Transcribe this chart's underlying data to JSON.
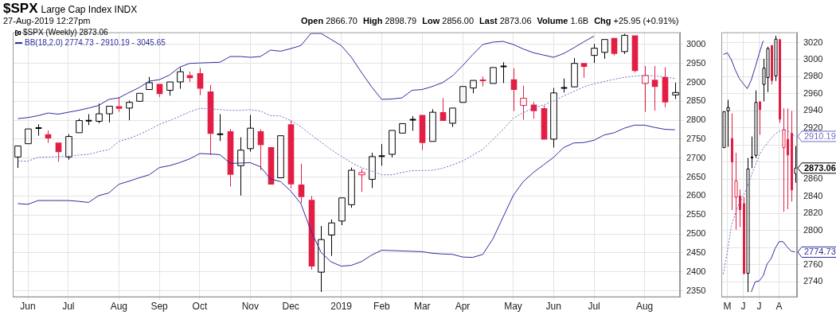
{
  "chart_data": [
    {
      "type": "candlestick",
      "title": "$SPX",
      "subtitle": "Large Cap Index INDX",
      "annotations": [
        "27-Aug-2019 12:27pm",
        "Open 2866.70",
        "High 2898.79",
        "Low 2856.00",
        "Last 2873.06",
        "Volume 1.6B",
        "Chg +25.95 (+0.91%)"
      ],
      "categories": [
        null,
        "Jun",
        null,
        null,
        null,
        "Jul",
        null,
        null,
        null,
        null,
        "Aug",
        null,
        null,
        null,
        "Sep",
        null,
        null,
        null,
        "Oct",
        null,
        null,
        null,
        null,
        "Nov",
        null,
        null,
        null,
        "Dec",
        null,
        null,
        null,
        null,
        "2019",
        null,
        null,
        null,
        "Feb",
        null,
        null,
        null,
        "Mar",
        null,
        null,
        null,
        "Apr",
        null,
        null,
        null,
        null,
        "May",
        null,
        null,
        null,
        "Jun",
        null,
        null,
        null,
        "Jul",
        null,
        null,
        null,
        null,
        "Aug",
        null,
        null,
        null
      ],
      "ylim": [
        2333,
        3032
      ],
      "yticks": [
        2350,
        2400,
        2450,
        2500,
        2550,
        2600,
        2650,
        2700,
        2750,
        2800,
        2850,
        2900,
        2950,
        3000
      ],
      "grid": true,
      "legend": "top left",
      "series": [
        {
          "type": "candlestick",
          "name": "$SPX (Weekly) 2873.06",
          "color": "#000000",
          "ohlc": [
            [
              2703,
              2735,
              2674,
              2732
            ],
            [
              2738,
              2779,
              2737,
              2777
            ],
            [
              2779,
              2789,
              2759,
              2780
            ],
            [
              2763,
              2773,
              2740,
              2752
            ],
            [
              2741,
              2741,
              2690,
              2716
            ],
            [
              2703,
              2763,
              2696,
              2757
            ],
            [
              2767,
              2804,
              2765,
              2799
            ],
            [
              2798,
              2816,
              2787,
              2799
            ],
            [
              2797,
              2844,
              2792,
              2817
            ],
            [
              2817,
              2837,
              2794,
              2837
            ],
            [
              2837,
              2861,
              2822,
              2830
            ],
            [
              2832,
              2852,
              2800,
              2847
            ],
            [
              2850,
              2874,
              2849,
              2871
            ],
            [
              2881,
              2914,
              2881,
              2899
            ],
            [
              2896,
              2896,
              2861,
              2869
            ],
            [
              2879,
              2901,
              2865,
              2901
            ],
            [
              2901,
              2939,
              2883,
              2928
            ],
            [
              2919,
              2928,
              2901,
              2911
            ],
            [
              2924,
              2938,
              2866,
              2883
            ],
            [
              2876,
              2893,
              2708,
              2764
            ],
            [
              2761,
              2816,
              2745,
              2765
            ],
            [
              2771,
              2777,
              2625,
              2656
            ],
            [
              2680,
              2755,
              2601,
              2721
            ],
            [
              2725,
              2814,
              2717,
              2779
            ],
            [
              2771,
              2776,
              2668,
              2734
            ],
            [
              2729,
              2731,
              2629,
              2630
            ],
            [
              2648,
              2760,
              2647,
              2759
            ],
            [
              2789,
              2799,
              2620,
              2631
            ],
            [
              2630,
              2685,
              2581,
              2597
            ],
            [
              2590,
              2600,
              2406,
              2414
            ],
            [
              2399,
              2521,
              2347,
              2485
            ],
            [
              2497,
              2538,
              2442,
              2529
            ],
            [
              2534,
              2596,
              2523,
              2595
            ],
            [
              2577,
              2675,
              2569,
              2668
            ],
            [
              2656,
              2672,
              2611,
              2662
            ],
            [
              2644,
              2714,
              2621,
              2704
            ],
            [
              2705,
              2737,
              2680,
              2706
            ],
            [
              2710,
              2774,
              2702,
              2773
            ],
            [
              2766,
              2791,
              2766,
              2791
            ],
            [
              2801,
              2811,
              2772,
              2802
            ],
            [
              2814,
              2816,
              2721,
              2740
            ],
            [
              2744,
              2829,
              2743,
              2821
            ],
            [
              2821,
              2858,
              2797,
              2798
            ],
            [
              2792,
              2834,
              2782,
              2832
            ],
            [
              2847,
              2891,
              2846,
              2889
            ],
            [
              2885,
              2908,
              2871,
              2905
            ],
            [
              2906,
              2915,
              2889,
              2904
            ],
            [
              2897,
              2940,
              2896,
              2939
            ],
            [
              2940,
              2953,
              2898,
              2944
            ],
            [
              2908,
              2937,
              2824,
              2880
            ],
            [
              2839,
              2891,
              2801,
              2858
            ],
            [
              2841,
              2848,
              2804,
              2824
            ],
            [
              2832,
              2839,
              2748,
              2749
            ],
            [
              2750,
              2885,
              2728,
              2872
            ],
            [
              2885,
              2910,
              2873,
              2886
            ],
            [
              2888,
              2964,
              2885,
              2950
            ],
            [
              2951,
              2951,
              2912,
              2941
            ],
            [
              2971,
              3001,
              2951,
              2990
            ],
            [
              2979,
              3015,
              2962,
              3013
            ],
            [
              3017,
              3017,
              2971,
              2975
            ],
            [
              2981,
              3028,
              2975,
              3024
            ],
            [
              3024,
              3024,
              2926,
              2930
            ],
            [
              2897,
              2943,
              2822,
              2918
            ],
            [
              2907,
              2943,
              2825,
              2888
            ],
            [
              2914,
              2940,
              2834,
              2847
            ],
            [
              2866.7,
              2898.79,
              2856,
              2873.06
            ]
          ],
          "colors": [
            "#000000",
            "#000000",
            "#000000",
            "#e31e45",
            "#e31e45",
            "#000000",
            "#000000",
            "#000000",
            "#000000",
            "#000000",
            "#e31e45",
            "#000000",
            "#000000",
            "#000000",
            "#e31e45",
            "#000000",
            "#000000",
            "#e31e45",
            "#e31e45",
            "#e31e45",
            "#000000",
            "#e31e45",
            "#000000",
            "#000000",
            "#e31e45",
            "#e31e45",
            "#000000",
            "#e31e45",
            "#e31e45",
            "#e31e45",
            "#000000",
            "#000000",
            "#000000",
            "#000000",
            "#e31e45",
            "#000000",
            "#000000",
            "#000000",
            "#000000",
            "#000000",
            "#e31e45",
            "#000000",
            "#e31e45",
            "#000000",
            "#000000",
            "#000000",
            "#e31e45",
            "#000000",
            "#000000",
            "#e31e45",
            "#e31e45",
            "#e31e45",
            "#e31e45",
            "#000000",
            "#000000",
            "#000000",
            "#e31e45",
            "#000000",
            "#000000",
            "#e31e45",
            "#000000",
            "#e31e45",
            "#e31e45",
            "#e31e45",
            "#e31e45",
            "#000000"
          ]
        },
        {
          "type": "line",
          "name": "BB(18,2.0) 2774.73 - 2910.19 - 3045.65",
          "color": "#2c2f9c",
          "line_style": "solid",
          "values": [
            2804,
            2807,
            2812,
            2819,
            2816,
            2821,
            2826,
            2832,
            2839,
            2855,
            2859,
            2873,
            2886,
            2903,
            2907,
            2919,
            2940,
            2950,
            2951,
            2952,
            2953,
            2968,
            2968,
            2966,
            2968,
            2985,
            2982,
            2989,
            2997,
            3029,
            3029,
            3013,
            2997,
            2966,
            2926,
            2888,
            2855,
            2856,
            2859,
            2879,
            2881,
            2889,
            2899,
            2917,
            2944,
            2973,
            3000,
            3006,
            3008,
            3000,
            2988,
            2978,
            2972,
            2966,
            2976,
            2991,
            3007,
            3022,
            null,
            null,
            null,
            null,
            null,
            null,
            null,
            null
          ]
        },
        {
          "type": "line",
          "color": "#6a6cc6",
          "line_style": "dotted",
          "values": [
            2692,
            2692,
            2702,
            2703,
            2704,
            2705,
            2708,
            2710,
            2717,
            2722,
            2744,
            2752,
            2762,
            2775,
            2789,
            2799,
            2810,
            2822,
            2831,
            2830,
            2828,
            2826,
            2826,
            2828,
            2824,
            2812,
            2811,
            2799,
            2783,
            2762,
            2742,
            2722,
            2705,
            2688,
            2675,
            2666,
            2656,
            2656,
            2662,
            2667,
            2667,
            2668,
            2673,
            2682,
            2692,
            2708,
            2723,
            2749,
            2775,
            2805,
            2820,
            2832,
            2840,
            2851,
            2864,
            2876,
            2888,
            2896,
            2902,
            2908,
            2913,
            2916,
            2918,
            2917,
            2914,
            2910.19
          ]
        },
        {
          "type": "line",
          "color": "#2c2f9c",
          "line_style": "solid",
          "values": [
            2580,
            2578,
            2588,
            2588,
            2588,
            2588,
            2586,
            2583,
            2601,
            2608,
            2631,
            2639,
            2648,
            2656,
            2675,
            2680,
            2688,
            2698,
            2712,
            2711,
            2709,
            2686,
            2687,
            2688,
            2677,
            2645,
            2638,
            2613,
            2580,
            2508,
            2451,
            2426,
            2415,
            2417,
            2427,
            2444,
            2457,
            2456,
            2455,
            2454,
            2453,
            2449,
            2447,
            2446,
            2439,
            2438,
            2446,
            2487,
            2544,
            2601,
            2638,
            2662,
            2682,
            2702,
            2728,
            2740,
            2741,
            2747,
            2761,
            2767,
            2779,
            2787,
            2787,
            2781,
            2776,
            2774.73
          ]
        }
      ]
    },
    {
      "type": "candlestick",
      "categories": [
        null,
        "M",
        null,
        null,
        null,
        "J",
        null,
        null,
        null,
        "J",
        null,
        null,
        null,
        null,
        "A",
        null,
        null,
        null,
        null
      ],
      "ylim": [
        2722,
        3032
      ],
      "yticks": [
        2740,
        2760,
        {
          "value": 2780,
          "label": null
        },
        2800,
        2820,
        2840,
        2860,
        {
          "value": 2880,
          "label": null
        },
        {
          "value": 2900,
          "label": null
        },
        2920,
        2940,
        2960,
        2980,
        3000,
        3020
      ],
      "grid": true,
      "series": [
        {
          "type": "candlestick",
          "ohlc": [
            [
              2897,
              2940,
              2896,
              2939
            ],
            [
              2940,
              2953,
              2898,
              2944
            ],
            [
              2908,
              2937,
              2824,
              2880
            ],
            [
              2839,
              2891,
              2801,
              2858
            ],
            [
              2841,
              2848,
              2804,
              2824
            ],
            [
              2832,
              2839,
              2748,
              2749
            ],
            [
              2750,
              2885,
              2728,
              2872
            ],
            [
              2885,
              2910,
              2873,
              2886
            ],
            [
              2888,
              2964,
              2885,
              2950
            ],
            [
              2951,
              2951,
              2912,
              2941
            ],
            [
              2971,
              3001,
              2951,
              2990
            ],
            [
              2979,
              3015,
              2962,
              3013
            ],
            [
              3017,
              3017,
              2971,
              2975
            ],
            [
              2981,
              3028,
              2975,
              3024
            ],
            [
              3024,
              3024,
              2926,
              2930
            ],
            [
              2897,
              2943,
              2822,
              2918
            ],
            [
              2907,
              2943,
              2825,
              2888
            ],
            [
              2914,
              2940,
              2834,
              2847
            ],
            [
              2866.7,
              2898.79,
              2856,
              2873.06
            ]
          ],
          "colors": [
            "#000000",
            "#000000",
            "#e31e45",
            "#e31e45",
            "#e31e45",
            "#e31e45",
            "#000000",
            "#000000",
            "#000000",
            "#e31e45",
            "#000000",
            "#000000",
            "#e31e45",
            "#000000",
            "#e31e45",
            "#e31e45",
            "#e31e45",
            "#e31e45",
            "#000000"
          ],
          "color": "#000000",
          "value_labels": [
            null,
            null,
            null,
            null,
            null,
            null,
            null,
            null,
            null,
            null,
            null,
            null,
            null,
            null,
            null,
            null,
            null,
            null,
            "2873.06"
          ]
        },
        {
          "type": "line",
          "color": "#2c2f9c",
          "line_style": "solid",
          "values": [
            3006,
            3008,
            3000,
            2988,
            2978,
            2972,
            2966,
            2976,
            2991,
            3007,
            3022,
            null,
            null,
            null,
            null,
            null,
            null,
            null,
            null
          ]
        },
        {
          "type": "line",
          "color": "#6a6cc6",
          "line_style": "dotted",
          "values": [
            2749,
            2775,
            2805,
            2820,
            2832,
            2840,
            2851,
            2864,
            2876,
            2888,
            2896,
            2902,
            2908,
            2913,
            2916,
            2918,
            2917,
            2914,
            2910.19
          ],
          "value_labels": [
            null,
            null,
            null,
            null,
            null,
            null,
            null,
            null,
            null,
            null,
            null,
            null,
            null,
            null,
            null,
            null,
            null,
            null,
            "2910.19"
          ]
        },
        {
          "type": "line",
          "color": "#2c2f9c",
          "line_style": "solid",
          "values": [
            null,
            null,
            null,
            null,
            null,
            null,
            null,
            2728,
            2740,
            2741,
            2747,
            2761,
            2767,
            2779,
            2787,
            2787,
            2781,
            2776,
            2774.73
          ],
          "value_labels": [
            null,
            null,
            null,
            null,
            null,
            null,
            null,
            null,
            null,
            null,
            null,
            null,
            null,
            null,
            null,
            null,
            null,
            null,
            "2774.73"
          ]
        }
      ]
    }
  ]
}
